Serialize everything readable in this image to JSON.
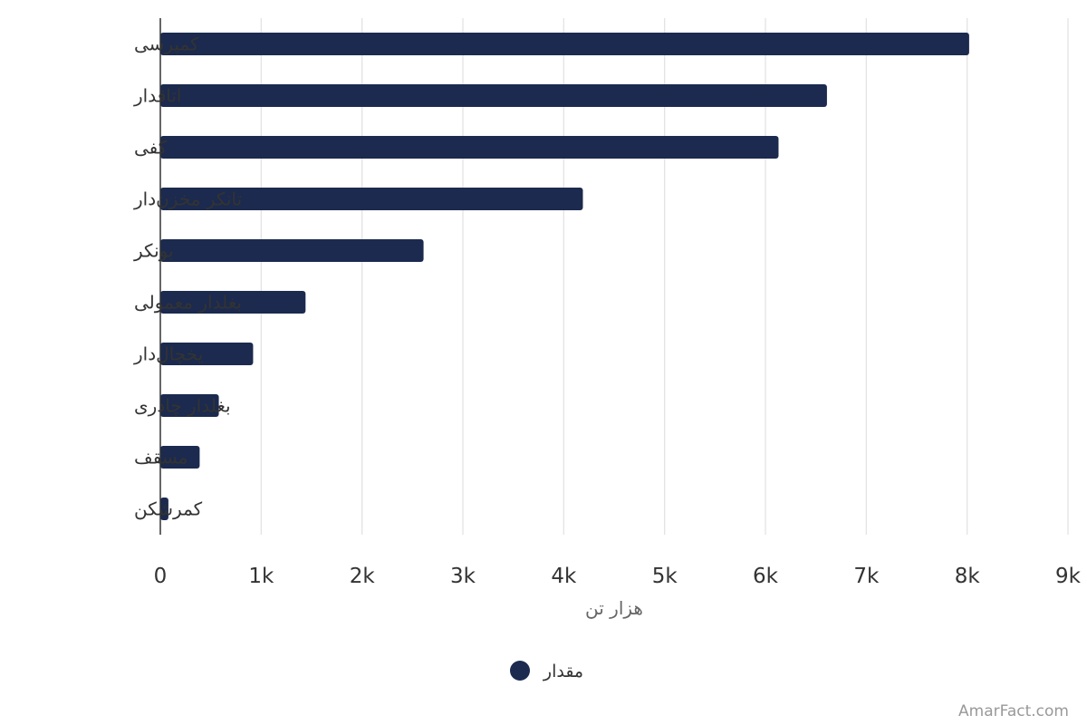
{
  "chart_data": {
    "type": "bar",
    "orientation": "horizontal",
    "categories": [
      "کمپرسی",
      "اتاقدار",
      "کفی",
      "تانکر مخزن‌دار",
      "بونکر",
      "بغلدار معمولی",
      "یخچال‌دار",
      "بغلدار چادری",
      "مسقف",
      "کمرشکن"
    ],
    "series": [
      {
        "name": "مقدار",
        "color": "#1b2a4e",
        "values": [
          8020,
          6610,
          6130,
          4190,
          2610,
          1440,
          920,
          580,
          390,
          80
        ]
      }
    ],
    "xlabel": "هزار تن",
    "xlim": [
      0,
      9000
    ],
    "ticks": [
      0,
      1000,
      2000,
      3000,
      4000,
      5000,
      6000,
      7000,
      8000,
      9000
    ],
    "tick_labels": [
      "0",
      "1k",
      "2k",
      "3k",
      "4k",
      "5k",
      "6k",
      "7k",
      "8k",
      "9k"
    ],
    "grid": true,
    "legend": "bottom-center"
  },
  "credit": "AmarFact.com"
}
